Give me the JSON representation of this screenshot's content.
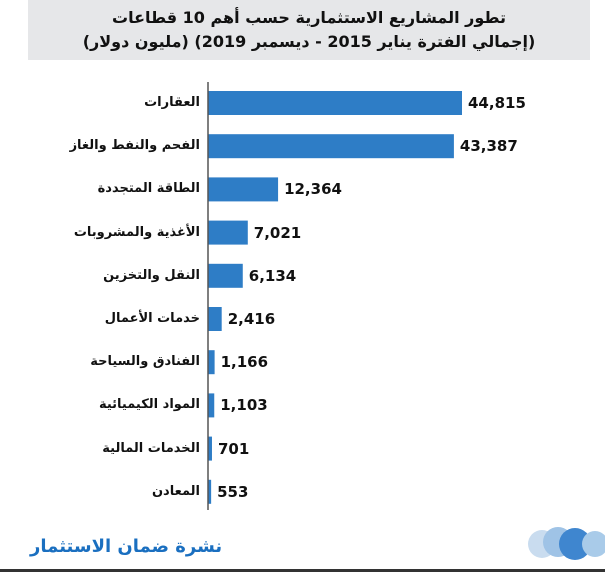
{
  "chart_data": {
    "type": "bar",
    "orientation": "horizontal",
    "title": "تطور المشاريع الاستثمارية حسب أهم 10 قطاعات",
    "subtitle": "(إجمالي الفترة يناير 2015 - ديسمبر 2019) (مليون دولار)",
    "categories": [
      "العقارات",
      "الفحم والنفط والغاز",
      "الطاقة المتجددة",
      "الأغذية والمشروبات",
      "النقل والتخزين",
      "خدمات الأعمال",
      "الفنادق والسياحة",
      "المواد الكيميائية",
      "الخدمات المالية",
      "المعادن"
    ],
    "values": [
      44815,
      43387,
      12364,
      7021,
      6134,
      2416,
      1166,
      1103,
      701,
      553
    ],
    "value_labels": [
      "44,815",
      "43,387",
      "12,364",
      "7,021",
      "6,134",
      "2,416",
      "1,166",
      "1,103",
      "701",
      "553"
    ],
    "bar_color": "#2e7dc6",
    "grid": false,
    "legend": "none"
  },
  "footer": {
    "source": "نشرة ضمان الاستثمار",
    "text_color": "#1a6fc0"
  }
}
